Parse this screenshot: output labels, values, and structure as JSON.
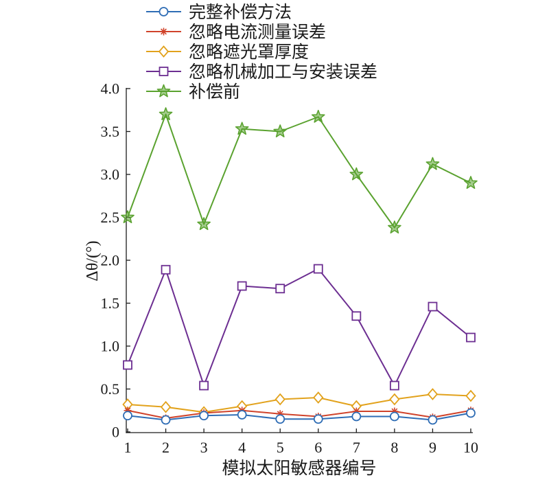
{
  "chart_data": {
    "type": "line",
    "x": [
      1,
      2,
      3,
      4,
      5,
      6,
      7,
      8,
      9,
      10
    ],
    "xticks": [
      1,
      2,
      3,
      4,
      5,
      6,
      7,
      8,
      9,
      10
    ],
    "yticks": [
      "0",
      "0.5",
      "1.0",
      "1.5",
      "2.0",
      "2.5",
      "3.0",
      "3.5",
      "4.0"
    ],
    "xlim": [
      1,
      10
    ],
    "ylim": [
      0,
      4.0
    ],
    "xlabel": "模拟太阳敏感器编号",
    "ylabel": "Δθ/(°)",
    "grid": false,
    "legend": "top",
    "series": [
      {
        "name": "完整补偿方法",
        "color": "#2f6db5",
        "marker": "circle",
        "values": [
          0.19,
          0.14,
          0.19,
          0.2,
          0.15,
          0.15,
          0.18,
          0.18,
          0.14,
          0.22
        ]
      },
      {
        "name": "忽略电流测量误差",
        "color": "#d0432b",
        "marker": "asterisk",
        "values": [
          0.25,
          0.16,
          0.22,
          0.25,
          0.21,
          0.18,
          0.24,
          0.24,
          0.17,
          0.25
        ]
      },
      {
        "name": "忽略遮光罩厚度",
        "color": "#e2a21c",
        "marker": "diamond",
        "values": [
          0.32,
          0.29,
          0.23,
          0.3,
          0.38,
          0.4,
          0.3,
          0.38,
          0.44,
          0.42
        ]
      },
      {
        "name": "忽略机械加工与安装误差",
        "color": "#6c2e91",
        "marker": "square",
        "values": [
          0.78,
          1.89,
          0.54,
          1.7,
          1.67,
          1.9,
          1.35,
          0.54,
          1.46,
          1.1
        ]
      },
      {
        "name": "补偿前",
        "color": "#5aa22f",
        "marker": "star",
        "values": [
          2.5,
          3.7,
          2.42,
          3.53,
          3.5,
          3.67,
          3.0,
          2.38,
          3.12,
          2.9
        ]
      }
    ]
  }
}
